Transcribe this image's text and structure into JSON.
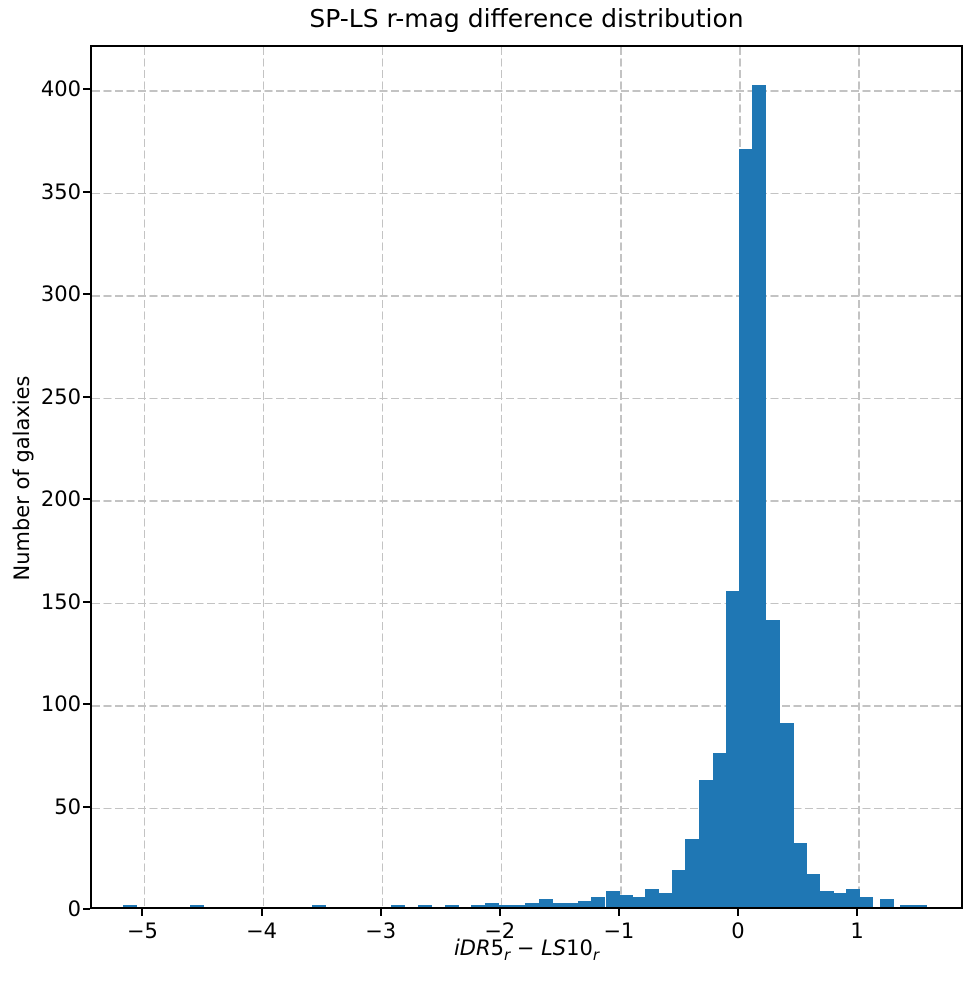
{
  "chart_data": {
    "type": "bar",
    "subtype": "histogram",
    "title": "SP-LS r-mag difference distribution",
    "ylabel": "Number of galaxies",
    "xlabel": "iDR5_r − LS10_r",
    "xlabel_parts": {
      "word1": "iDR",
      "num1": "5",
      "sub1": "r",
      "operator": " − ",
      "word2": "LS",
      "num2": "10",
      "sub2": "r"
    },
    "xlim": [
      -5.44,
      1.89
    ],
    "ylim": [
      0,
      421.5
    ],
    "grid": true,
    "grid_style": "dashed",
    "legend": "none",
    "bar_color": "#1f77b4",
    "grid_color": "#c3c3c3",
    "axis_color": "#000000",
    "bin_width": 0.1124,
    "x_ticks": [
      {
        "v": -5,
        "label": "−5"
      },
      {
        "v": -4,
        "label": "−4"
      },
      {
        "v": -3,
        "label": "−3"
      },
      {
        "v": -2,
        "label": "−2"
      },
      {
        "v": -1,
        "label": "−1"
      },
      {
        "v": 0,
        "label": "0"
      },
      {
        "v": 1,
        "label": "1"
      }
    ],
    "y_ticks": [
      {
        "v": 0,
        "label": "0"
      },
      {
        "v": 50,
        "label": "50"
      },
      {
        "v": 100,
        "label": "100"
      },
      {
        "v": 150,
        "label": "150"
      },
      {
        "v": 200,
        "label": "200"
      },
      {
        "v": 250,
        "label": "250"
      },
      {
        "v": 300,
        "label": "300"
      },
      {
        "v": 350,
        "label": "350"
      },
      {
        "v": 400,
        "label": "400"
      }
    ],
    "bins": [
      {
        "x0": -5.16,
        "count": 1
      },
      {
        "x0": -4.6,
        "count": 1
      },
      {
        "x0": -3.58,
        "count": 1
      },
      {
        "x0": -2.91,
        "count": 1
      },
      {
        "x0": -2.69,
        "count": 1
      },
      {
        "x0": -2.46,
        "count": 1
      },
      {
        "x0": -2.24,
        "count": 1
      },
      {
        "x0": -2.12,
        "count": 2
      },
      {
        "x0": -2.01,
        "count": 1
      },
      {
        "x0": -1.9,
        "count": 1
      },
      {
        "x0": -1.79,
        "count": 2
      },
      {
        "x0": -1.67,
        "count": 4
      },
      {
        "x0": -1.56,
        "count": 2
      },
      {
        "x0": -1.45,
        "count": 2
      },
      {
        "x0": -1.34,
        "count": 3
      },
      {
        "x0": -1.23,
        "count": 5
      },
      {
        "x0": -1.11,
        "count": 8
      },
      {
        "x0": -1.0,
        "count": 6
      },
      {
        "x0": -0.89,
        "count": 5
      },
      {
        "x0": -0.78,
        "count": 9
      },
      {
        "x0": -0.66,
        "count": 7
      },
      {
        "x0": -0.55,
        "count": 18
      },
      {
        "x0": -0.44,
        "count": 33
      },
      {
        "x0": -0.33,
        "count": 62
      },
      {
        "x0": -0.21,
        "count": 75
      },
      {
        "x0": -0.1,
        "count": 154
      },
      {
        "x0": 0.01,
        "count": 370
      },
      {
        "x0": 0.12,
        "count": 401
      },
      {
        "x0": 0.24,
        "count": 140
      },
      {
        "x0": 0.35,
        "count": 90
      },
      {
        "x0": 0.46,
        "count": 31
      },
      {
        "x0": 0.57,
        "count": 16
      },
      {
        "x0": 0.69,
        "count": 8
      },
      {
        "x0": 0.8,
        "count": 7
      },
      {
        "x0": 0.91,
        "count": 9
      },
      {
        "x0": 1.02,
        "count": 5
      },
      {
        "x0": 1.19,
        "count": 4
      },
      {
        "x0": 1.36,
        "count": 1
      },
      {
        "x0": 1.47,
        "count": 1
      }
    ]
  }
}
